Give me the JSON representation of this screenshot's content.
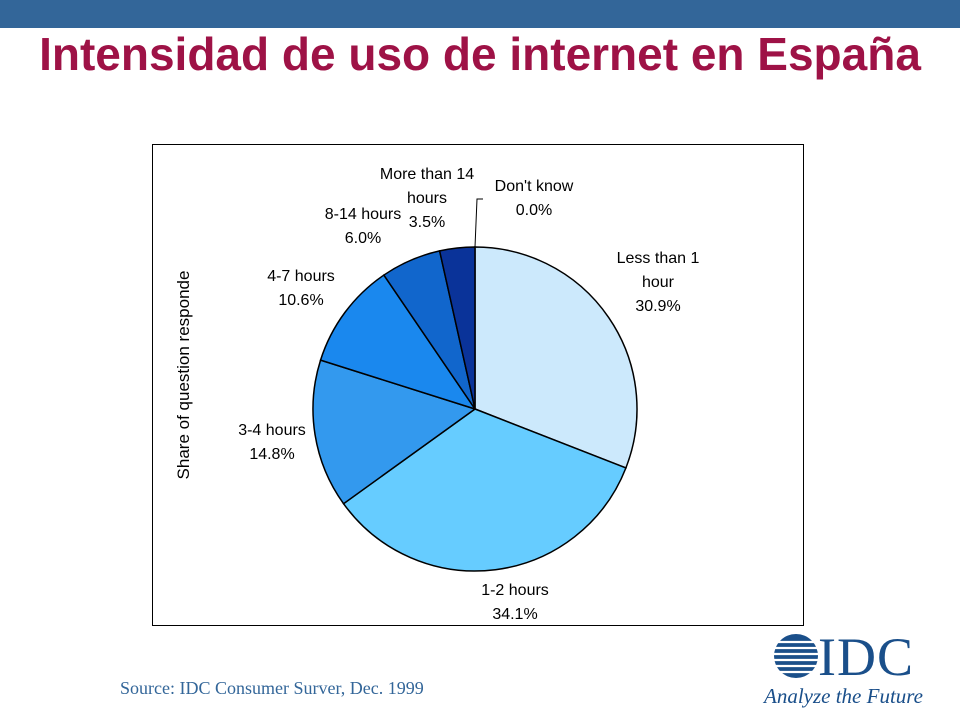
{
  "header": {
    "title": "Intensidad de uso de internet en España"
  },
  "chart_data": {
    "type": "pie",
    "ylabel": "Share of question responde",
    "slices": [
      {
        "label": "Less than 1 hour",
        "label_lines": [
          "Less than 1",
          "hour"
        ],
        "value": 30.9,
        "value_label": "30.9%",
        "color": "#cce9fc"
      },
      {
        "label": "1-2 hours",
        "label_lines": [
          "1-2 hours"
        ],
        "value": 34.1,
        "value_label": "34.1%",
        "color": "#66ccff"
      },
      {
        "label": "3-4 hours",
        "label_lines": [
          "3-4 hours"
        ],
        "value": 14.8,
        "value_label": "14.8%",
        "color": "#3399ee"
      },
      {
        "label": "4-7 hours",
        "label_lines": [
          "4-7 hours"
        ],
        "value": 10.6,
        "value_label": "10.6%",
        "color": "#1a88ee"
      },
      {
        "label": "8-14 hours",
        "label_lines": [
          "8-14 hours"
        ],
        "value": 6.0,
        "value_label": "6.0%",
        "color": "#1166cc"
      },
      {
        "label": "More than 14 hours",
        "label_lines": [
          "More than 14",
          "hours"
        ],
        "value": 3.5,
        "value_label": "3.5%",
        "color": "#0a3399"
      },
      {
        "label": "Don't know",
        "label_lines": [
          "Don't know"
        ],
        "value": 0.0,
        "value_label": "0.0%",
        "color": "#000066"
      }
    ]
  },
  "footer": {
    "source": "Source: IDC Consumer Surver, Dec. 1999",
    "logo_text": "IDC",
    "tagline": "Analyze the Future"
  }
}
